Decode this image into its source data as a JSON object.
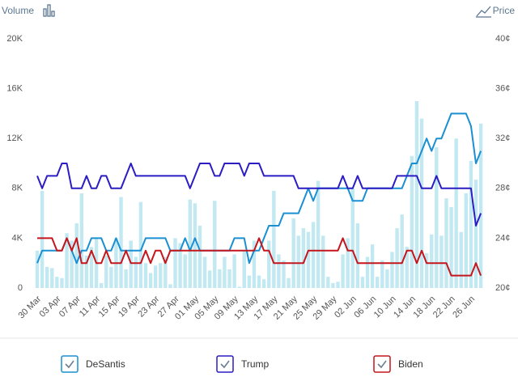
{
  "chart_data": {
    "type": "bar-line",
    "y_label": "Volume",
    "y2_label": "Price",
    "categories": [
      "30 Mar",
      null,
      null,
      null,
      "03 Apr",
      null,
      null,
      null,
      "07 Apr",
      null,
      null,
      null,
      "11 Apr",
      null,
      null,
      null,
      "15 Apr",
      null,
      null,
      null,
      "19 Apr",
      null,
      null,
      null,
      "23 Apr",
      null,
      null,
      null,
      "27 Apr",
      null,
      null,
      null,
      "01 May",
      null,
      null,
      null,
      "05 May",
      null,
      null,
      null,
      "09 May",
      null,
      null,
      null,
      "13 May",
      null,
      null,
      null,
      "17 May",
      null,
      null,
      null,
      "21 May",
      null,
      null,
      null,
      "25 May",
      null,
      null,
      null,
      "29 May",
      null,
      null,
      null,
      "02 Jun",
      null,
      null,
      null,
      "06 Jun",
      null,
      null,
      null,
      "10 Jun",
      null,
      null,
      null,
      "14 Jun",
      null,
      null,
      null,
      "18 Jun",
      null,
      null,
      null,
      "22 Jun",
      null,
      null,
      null,
      "26 Jun",
      null,
      null
    ],
    "volume": {
      "color": "#c2e9f2",
      "values": [
        3000,
        7800,
        1700,
        1600,
        900,
        800,
        4400,
        3800,
        5200,
        7600,
        2600,
        3300,
        4000,
        400,
        2600,
        1700,
        4000,
        7300,
        1500,
        3800,
        2500,
        6900,
        2000,
        1200,
        1800,
        2000,
        2500,
        300,
        4000,
        3600,
        2700,
        7100,
        6800,
        5000,
        2500,
        1400,
        7000,
        1500,
        2500,
        1500,
        2700,
        100,
        3000,
        1000,
        3800,
        1000,
        700,
        3800,
        7800,
        2700,
        2200,
        800,
        5600,
        4200,
        4800,
        4500,
        5300,
        8600,
        4200,
        900,
        400,
        500,
        2700,
        4000,
        8000,
        5200,
        900,
        2500,
        3500,
        900,
        2200,
        1500,
        2900,
        4800,
        5900,
        3300,
        10600,
        15000,
        13600,
        2800,
        4300,
        11300,
        4200,
        7200,
        6500,
        12000,
        4500,
        7600,
        10200,
        8700,
        13200
      ]
    },
    "series": [
      {
        "name": "DeSantis",
        "color": "#1a8fd1",
        "axis": "y2",
        "values": [
          22,
          23,
          23,
          23,
          23,
          23,
          24,
          23,
          22,
          23,
          23,
          24,
          24,
          24,
          23,
          23,
          24,
          23,
          23,
          23,
          23,
          23,
          24,
          24,
          24,
          24,
          24,
          23,
          23,
          23,
          24,
          23,
          24,
          23,
          23,
          23,
          23,
          23,
          23,
          23,
          24,
          24,
          24,
          22,
          23,
          23,
          24,
          25,
          25,
          25,
          26,
          26,
          26,
          26,
          27,
          28,
          27,
          28,
          28,
          28,
          28,
          28,
          28,
          28,
          27,
          27,
          27,
          28,
          28,
          28,
          28,
          28,
          28,
          28,
          28,
          29,
          30,
          30,
          31,
          32,
          31,
          32,
          32,
          33,
          34,
          34,
          34,
          34,
          33,
          30,
          31
        ]
      },
      {
        "name": "Trump",
        "color": "#2b1cc4",
        "axis": "y2",
        "values": [
          29,
          28,
          29,
          29,
          29,
          30,
          30,
          28,
          28,
          28,
          29,
          28,
          28,
          29,
          29,
          28,
          28,
          28,
          29,
          30,
          29,
          29,
          29,
          29,
          29,
          29,
          29,
          29,
          29,
          29,
          29,
          28,
          29,
          30,
          30,
          30,
          29,
          29,
          30,
          30,
          30,
          30,
          29,
          30,
          30,
          30,
          29,
          29,
          29,
          29,
          29,
          29,
          29,
          28,
          28,
          28,
          28,
          28,
          28,
          28,
          28,
          28,
          29,
          28,
          28,
          29,
          28,
          28,
          28,
          28,
          28,
          28,
          28,
          29,
          29,
          29,
          29,
          29,
          28,
          28,
          28,
          29,
          28,
          28,
          28,
          28,
          28,
          28,
          28,
          25,
          26
        ]
      },
      {
        "name": "Biden",
        "color": "#c4161c",
        "axis": "y2",
        "values": [
          24,
          24,
          24,
          24,
          23,
          23,
          24,
          23,
          24,
          22,
          22,
          23,
          22,
          22,
          23,
          22,
          22,
          22,
          23,
          22,
          22,
          22,
          23,
          22,
          23,
          23,
          22,
          23,
          23,
          23,
          23,
          23,
          23,
          23,
          23,
          23,
          23,
          23,
          23,
          23,
          23,
          23,
          23,
          23,
          23,
          24,
          23,
          23,
          22,
          22,
          22,
          22,
          22,
          22,
          22,
          23,
          23,
          23,
          23,
          23,
          23,
          23,
          24,
          23,
          23,
          22,
          22,
          22,
          22,
          22,
          22,
          22,
          22,
          22,
          22,
          23,
          23,
          22,
          23,
          22,
          22,
          22,
          22,
          22,
          21,
          21,
          21,
          21,
          21,
          22,
          21
        ]
      }
    ],
    "ylim": [
      0,
      20000
    ],
    "yticks": [
      0,
      {
        "value": 4000,
        "label": "4K"
      },
      {
        "value": 8000,
        "label": "8K"
      },
      {
        "value": 12000,
        "label": "12K"
      },
      {
        "value": 16000,
        "label": "16K"
      },
      {
        "value": 20000,
        "label": "20K"
      }
    ],
    "y2lim": [
      20,
      40
    ],
    "y2ticks": [
      {
        "value": 20,
        "label": "20¢"
      },
      {
        "value": 24,
        "label": "24¢"
      },
      {
        "value": 28,
        "label": "28¢"
      },
      {
        "value": 32,
        "label": "32¢"
      },
      {
        "value": 36,
        "label": "36¢"
      },
      {
        "value": 40,
        "label": "40¢"
      }
    ],
    "grid": false,
    "legend": "bottom"
  }
}
